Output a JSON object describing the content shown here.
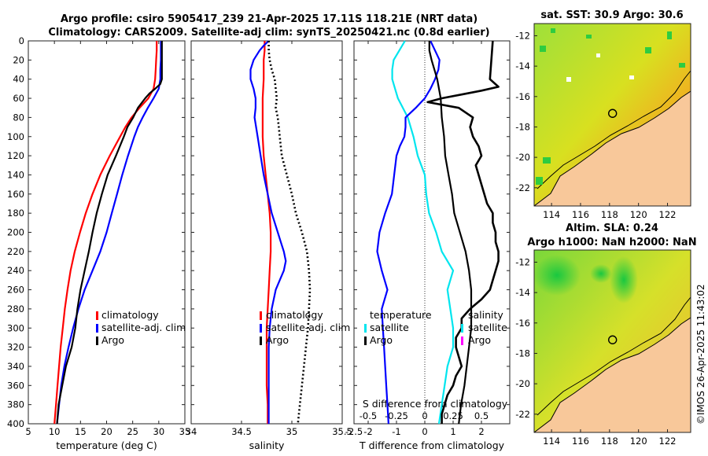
{
  "chart_data": {
    "type": "line",
    "title_line1": "Argo profile: csiro 5905417_239 21-Apr-2025 17.11S 118.21E (NRT data)",
    "title_line2": "Climatology: CARS2009. Satellite-adj clim: synTS_20250421.nc (0.8d earlier)",
    "watermark": "©IMOS 26-Apr-2025 11:43:02",
    "depth_ticks": [
      "0",
      "20",
      "40",
      "60",
      "80",
      "100",
      "120",
      "140",
      "160",
      "180",
      "200",
      "220",
      "240",
      "260",
      "280",
      "300",
      "320",
      "340",
      "360",
      "380",
      "400"
    ],
    "ylim": [
      0,
      400
    ],
    "colors": {
      "climatology": "#ff0000",
      "satellite": "#0000ff",
      "argo": "#000000",
      "t_diff_sat": "#00e5ee",
      "s_diff_sat": "#ff00ff"
    },
    "panels": [
      {
        "name": "temperature",
        "xlabel": "temperature (deg C)",
        "xlim": [
          5,
          35
        ],
        "xticks": [
          "5",
          "10",
          "15",
          "20",
          "25",
          "30",
          "35"
        ],
        "xtick_values": [
          5,
          10,
          15,
          20,
          25,
          30,
          35
        ],
        "legend": [
          "climatology",
          "satellite-adj. clim",
          "Argo"
        ],
        "series": [
          {
            "name": "climatology",
            "depth": [
              0,
              10,
              20,
              30,
              40,
              50,
              60,
              70,
              80,
              90,
              100,
              120,
              140,
              160,
              180,
              200,
              220,
              240,
              260,
              280,
              300,
              320,
              340,
              360,
              380,
              400
            ],
            "values": [
              29.6,
              29.6,
              29.5,
              29.4,
              29.3,
              29.0,
              28.0,
              26.3,
              24.8,
              23.6,
              22.6,
              20.6,
              18.8,
              17.3,
              16.0,
              14.9,
              13.9,
              13.1,
              12.5,
              12.0,
              11.6,
              11.2,
              10.9,
              10.6,
              10.3,
              10.0
            ]
          },
          {
            "name": "satellite-adj. clim",
            "depth": [
              0,
              10,
              20,
              30,
              40,
              50,
              60,
              70,
              80,
              90,
              100,
              120,
              140,
              160,
              180,
              200,
              220,
              240,
              260,
              280,
              300,
              320,
              340,
              360,
              380,
              400
            ],
            "values": [
              30.4,
              30.4,
              30.4,
              30.3,
              30.3,
              30.0,
              29.0,
              27.9,
              26.9,
              26.0,
              25.3,
              24.1,
              23.0,
              22.0,
              21.0,
              20.0,
              18.8,
              17.3,
              15.8,
              14.6,
              13.6,
              12.7,
              11.9,
              11.3,
              10.9,
              10.5
            ]
          },
          {
            "name": "Argo",
            "depth": [
              0,
              10,
              20,
              30,
              40,
              45,
              50,
              55,
              60,
              70,
              80,
              90,
              100,
              120,
              140,
              160,
              180,
              200,
              220,
              240,
              260,
              280,
              300,
              320,
              340,
              360,
              380,
              400
            ],
            "values": [
              30.6,
              30.6,
              30.6,
              30.6,
              30.6,
              30.3,
              29.3,
              28.2,
              27.4,
              26.0,
              25.1,
              24.0,
              23.3,
              21.8,
              20.2,
              19.1,
              18.1,
              17.3,
              16.6,
              15.8,
              15.0,
              14.4,
              14.0,
              13.3,
              12.2,
              11.5,
              10.8,
              10.5
            ]
          }
        ]
      },
      {
        "name": "salinity",
        "xlabel": "salinity",
        "xlim": [
          34,
          35.5
        ],
        "xticks": [
          "34",
          "34.5",
          "35",
          "35.5"
        ],
        "xtick_values": [
          34,
          34.5,
          35,
          35.5
        ],
        "legend": [
          "climatology",
          "satellite-adj. clim",
          "Argo"
        ],
        "series": [
          {
            "name": "climatology",
            "depth": [
              0,
              10,
              20,
              40,
              60,
              80,
              100,
              120,
              140,
              160,
              180,
              200,
              220,
              240,
              260,
              280,
              300,
              320,
              340,
              360,
              380,
              400
            ],
            "values": [
              34.73,
              34.73,
              34.72,
              34.72,
              34.71,
              34.71,
              34.71,
              34.72,
              34.74,
              34.76,
              34.78,
              34.79,
              34.79,
              34.78,
              34.77,
              34.76,
              34.75,
              34.75,
              34.75,
              34.75,
              34.76,
              34.76
            ]
          },
          {
            "name": "satellite-adj. clim",
            "depth": [
              0,
              5,
              10,
              20,
              30,
              40,
              50,
              60,
              70,
              80,
              100,
              120,
              140,
              160,
              180,
              200,
              210,
              220,
              230,
              240,
              250,
              260,
              280,
              300,
              320,
              340,
              360,
              380,
              400
            ],
            "values": [
              34.77,
              34.72,
              34.68,
              34.62,
              34.59,
              34.59,
              34.62,
              34.64,
              34.64,
              34.63,
              34.66,
              34.69,
              34.72,
              34.76,
              34.8,
              34.86,
              34.89,
              34.92,
              34.94,
              34.92,
              34.88,
              34.84,
              34.8,
              34.78,
              34.77,
              34.77,
              34.77,
              34.77,
              34.77
            ]
          },
          {
            "name": "Argo",
            "depth": [
              0,
              10,
              20,
              30,
              40,
              50,
              60,
              70,
              80,
              90,
              100,
              120,
              140,
              160,
              180,
              200,
              220,
              240,
              260,
              280,
              300,
              320,
              340,
              360,
              380,
              400
            ],
            "values": [
              34.77,
              34.77,
              34.78,
              34.8,
              34.83,
              34.84,
              34.85,
              34.84,
              34.86,
              34.87,
              34.88,
              34.9,
              34.95,
              35.0,
              35.04,
              35.1,
              35.15,
              35.17,
              35.18,
              35.17,
              35.16,
              35.14,
              35.12,
              35.1,
              35.08,
              35.06
            ]
          }
        ]
      },
      {
        "name": "difference",
        "xlabel": "T difference from climatology",
        "xlim": [
          -2.5,
          3
        ],
        "xticks": [
          "-2.5",
          "-2",
          "-1",
          "0",
          "1",
          "2"
        ],
        "xtick_values": [
          -2.5,
          -2,
          -1,
          0,
          1,
          2
        ],
        "top_label": "S difference from climatology",
        "s_ticks": [
          "-0.5",
          "-0.25",
          "0",
          "0.25",
          "0.5"
        ],
        "s_tick_values": [
          -0.5,
          -0.25,
          0,
          0.25,
          0.5
        ],
        "s_scale": 4,
        "legend_temperature": [
          "temperature",
          "satellite",
          "Argo"
        ],
        "legend_salinity": [
          "salinity",
          "satellite",
          "Argo"
        ],
        "series": [
          {
            "name": "T satellite",
            "depth": [
              0,
              10,
              20,
              30,
              40,
              50,
              60,
              80,
              100,
              120,
              140,
              160,
              180,
              200,
              220,
              240,
              260,
              280,
              300,
              320,
              340,
              360,
              380,
              400
            ],
            "values": [
              -0.7,
              -0.9,
              -1.1,
              -1.15,
              -1.15,
              -1.05,
              -0.95,
              -0.6,
              -0.4,
              -0.25,
              0.0,
              0.05,
              0.15,
              0.4,
              0.6,
              1.0,
              0.8,
              0.9,
              1.0,
              1.0,
              0.8,
              0.7,
              0.6,
              0.5
            ]
          },
          {
            "name": "T Argo",
            "depth": [
              0,
              40,
              48,
              52,
              56,
              60,
              64,
              70,
              80,
              90,
              100,
              110,
              120,
              130,
              140,
              150,
              160,
              170,
              180,
              190,
              200,
              210,
              220,
              230,
              240,
              250,
              260,
              270,
              280,
              290,
              300,
              310,
              320,
              330,
              340,
              350,
              360,
              370,
              380,
              390,
              400
            ],
            "values": [
              2.4,
              2.3,
              2.6,
              2.0,
              1.3,
              0.6,
              0.1,
              1.2,
              1.7,
              1.6,
              1.7,
              1.9,
              2.0,
              1.8,
              1.9,
              2.0,
              2.1,
              2.2,
              2.4,
              2.4,
              2.5,
              2.5,
              2.6,
              2.6,
              2.5,
              2.4,
              2.3,
              2.0,
              1.6,
              1.3,
              1.3,
              1.1,
              1.1,
              1.2,
              1.3,
              1.1,
              1.0,
              0.8,
              0.7,
              0.6,
              0.6
            ]
          },
          {
            "name": "S satellite",
            "depth": [
              0,
              10,
              20,
              30,
              40,
              50,
              60,
              70,
              80,
              90,
              100,
              110,
              120,
              140,
              160,
              180,
              200,
              220,
              240,
              260,
              280,
              300,
              320,
              340,
              360,
              380,
              400
            ],
            "values": [
              0.05,
              0.09,
              0.13,
              0.12,
              0.09,
              0.05,
              0.0,
              -0.08,
              -0.17,
              -0.17,
              -0.18,
              -0.22,
              -0.25,
              -0.27,
              -0.29,
              -0.35,
              -0.4,
              -0.42,
              -0.38,
              -0.33,
              -0.38,
              -0.37,
              -0.36,
              -0.35,
              -0.34,
              -0.33,
              -0.32
            ]
          },
          {
            "name": "S Argo",
            "depth": [
              0,
              10,
              20,
              40,
              60,
              80,
              100,
              120,
              140,
              160,
              180,
              200,
              220,
              240,
              260,
              280,
              300,
              320,
              340,
              360,
              380,
              400
            ],
            "values": [
              0.04,
              0.04,
              0.06,
              0.11,
              0.14,
              0.15,
              0.17,
              0.18,
              0.21,
              0.24,
              0.26,
              0.31,
              0.36,
              0.39,
              0.41,
              0.41,
              0.41,
              0.39,
              0.37,
              0.35,
              0.32,
              0.3
            ]
          }
        ]
      }
    ],
    "maps": [
      {
        "title_lines": [
          "sat. SST: 30.9 Argo: 30.6"
        ],
        "kind": "sst",
        "lon_ticks": [
          "114",
          "116",
          "118",
          "120",
          "122"
        ],
        "lon_tick_values": [
          114,
          116,
          118,
          120,
          122
        ],
        "lat_ticks": [
          "-12",
          "-14",
          "-16",
          "-18",
          "-20",
          "-22"
        ],
        "lat_tick_values": [
          -12,
          -14,
          -16,
          -18,
          -20,
          -22
        ],
        "lon_range": [
          112.8,
          123.6
        ],
        "lat_range": [
          -23.2,
          -11.2
        ],
        "argo_position": {
          "lon": 118.21,
          "lat": -17.11
        }
      },
      {
        "title_lines": [
          "Altim. SLA: 0.24",
          "Argo h1000: NaN h2000: NaN"
        ],
        "kind": "sla",
        "lon_ticks": [
          "114",
          "116",
          "118",
          "120",
          "122"
        ],
        "lon_tick_values": [
          114,
          116,
          118,
          120,
          122
        ],
        "lat_ticks": [
          "-12",
          "-14",
          "-16",
          "-18",
          "-20",
          "-22"
        ],
        "lat_tick_values": [
          -12,
          -14,
          -16,
          -18,
          -20,
          -22
        ],
        "lon_range": [
          112.8,
          123.6
        ],
        "lat_range": [
          -23.2,
          -11.2
        ],
        "argo_position": {
          "lon": 118.21,
          "lat": -17.11
        }
      }
    ]
  }
}
